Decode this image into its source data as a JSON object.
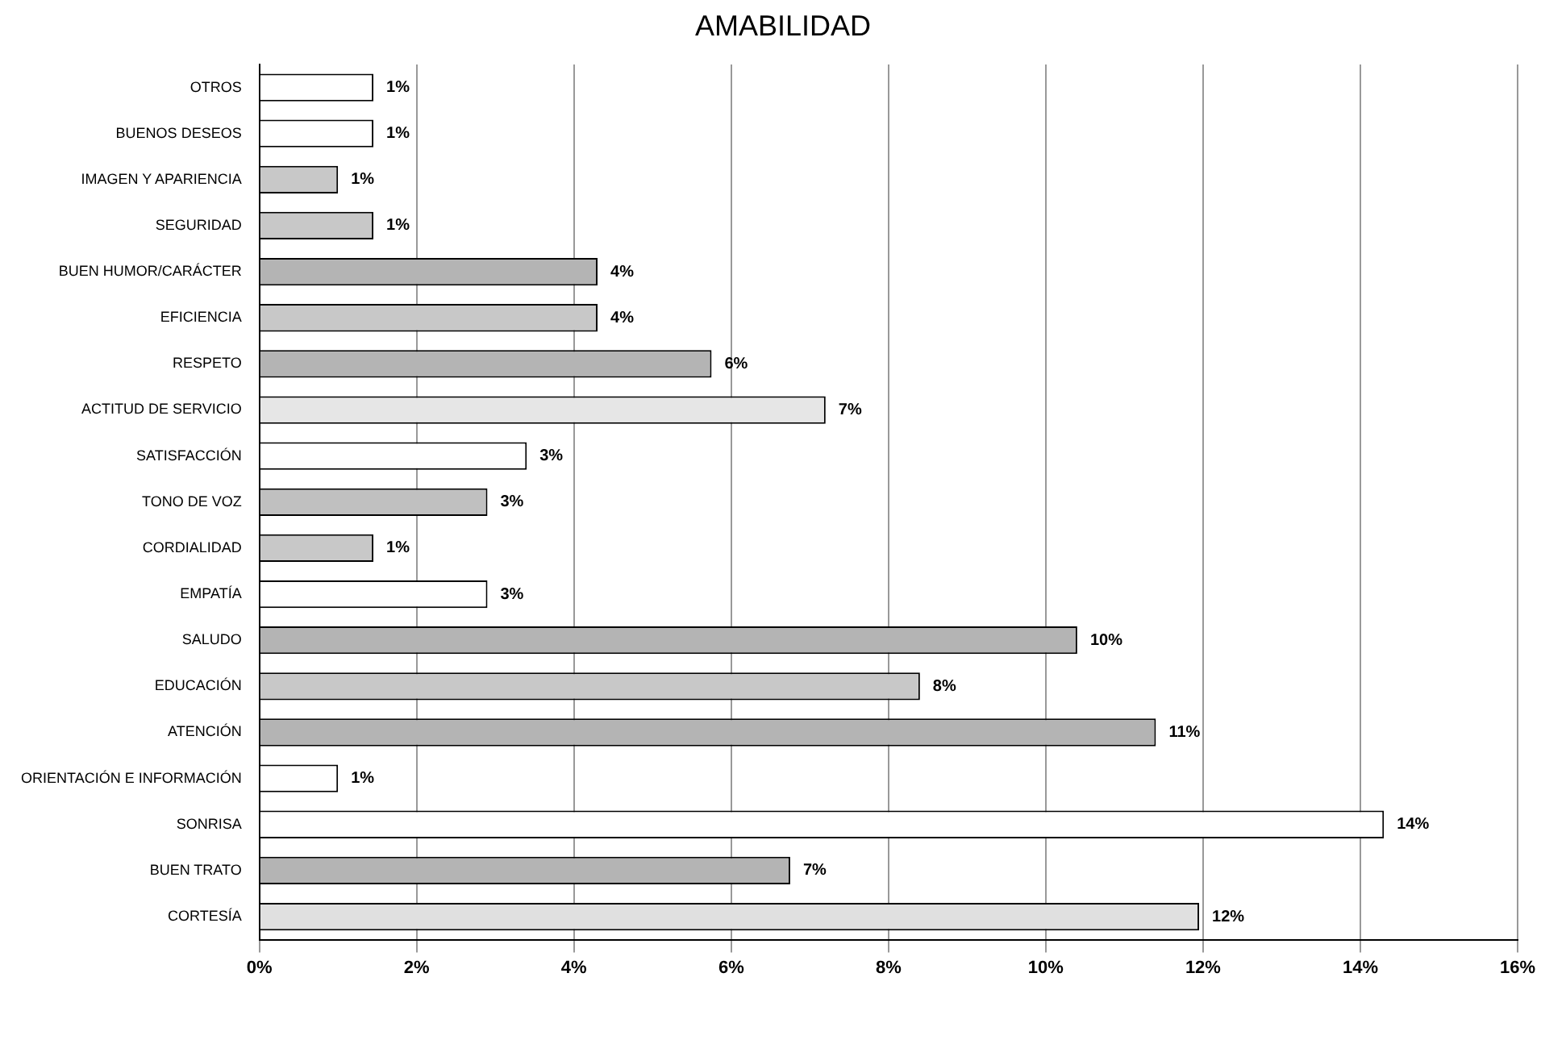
{
  "chart_data": {
    "type": "bar",
    "orientation": "horizontal",
    "title": "AMABILIDAD",
    "categories": [
      "OTROS",
      "BUENOS DESEOS",
      "IMAGEN Y APARIENCIA",
      "SEGURIDAD",
      "BUEN HUMOR/CARÁCTER",
      "EFICIENCIA",
      "RESPETO",
      "ACTITUD DE SERVICIO",
      "SATISFACCIÓN",
      "TONO DE VOZ",
      "CORDIALIDAD",
      "EMPATÍA",
      "SALUDO",
      "EDUCACIÓN",
      "ATENCIÓN",
      "ORIENTACIÓN E INFORMACIÓN",
      "SONRISA",
      "BUEN TRATO",
      "CORTESÍA"
    ],
    "values": [
      1.45,
      1.45,
      1.0,
      1.45,
      4.3,
      4.3,
      5.75,
      7.2,
      3.4,
      2.9,
      1.45,
      2.9,
      10.4,
      8.4,
      11.4,
      1.0,
      14.3,
      6.75,
      11.95
    ],
    "value_labels": [
      "1%",
      "1%",
      "1%",
      "1%",
      "4%",
      "4%",
      "6%",
      "7%",
      "3%",
      "3%",
      "1%",
      "3%",
      "10%",
      "8%",
      "11%",
      "1%",
      "14%",
      "7%",
      "12%"
    ],
    "colors": [
      "#ffffff",
      "#ffffff",
      "#c8c8c8",
      "#c8c8c8",
      "#b4b4b4",
      "#c8c8c8",
      "#b4b4b4",
      "#e6e6e6",
      "#ffffff",
      "#c0c0c0",
      "#c8c8c8",
      "#ffffff",
      "#b4b4b4",
      "#c8c8c8",
      "#b4b4b4",
      "#ffffff",
      "#ffffff",
      "#b4b4b4",
      "#e0e0e0"
    ],
    "xlim": [
      0,
      16
    ],
    "xticks": [
      {
        "value": 0,
        "label": "0%"
      },
      {
        "value": 2,
        "label": "2%"
      },
      {
        "value": 4,
        "label": "4%"
      },
      {
        "value": 6,
        "label": "6%"
      },
      {
        "value": 8,
        "label": "8%"
      },
      {
        "value": 10,
        "label": "10%"
      },
      {
        "value": 12,
        "label": "12%"
      },
      {
        "value": 14,
        "label": "14%"
      },
      {
        "value": 16,
        "label": "16%"
      }
    ],
    "grid": "x"
  }
}
